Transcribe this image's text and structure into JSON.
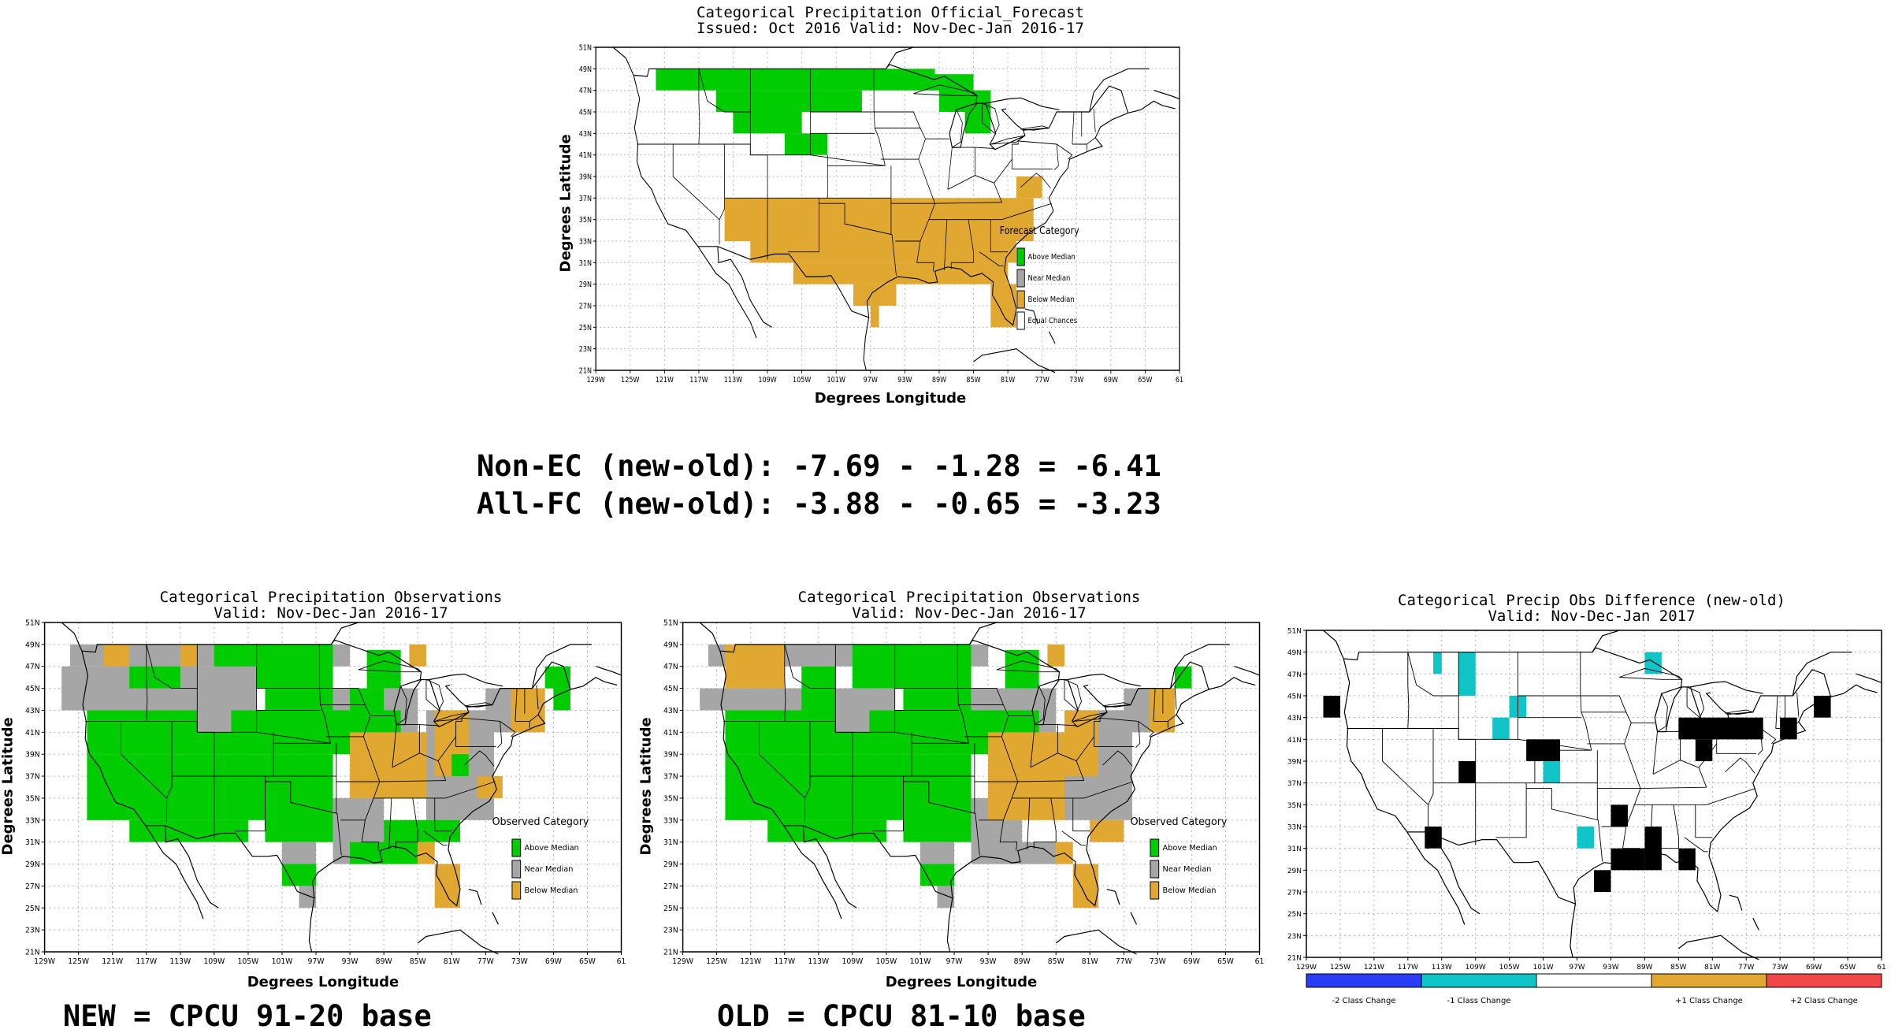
{
  "colors": {
    "above": "#00cc00",
    "near": "#a6a6a6",
    "below": "#e0a830",
    "minus2": "#2a3cf5",
    "minus1": "#10c4c8",
    "plus2": "#f04848",
    "grid": "#b0b0b0",
    "outline": "#000000"
  },
  "lat_ticks": [
    "21N",
    "23N",
    "25N",
    "27N",
    "29N",
    "31N",
    "33N",
    "35N",
    "37N",
    "39N",
    "41N",
    "43N",
    "45N",
    "47N",
    "49N",
    "51N"
  ],
  "lon_ticks": [
    "129W",
    "125W",
    "121W",
    "117W",
    "113W",
    "109W",
    "105W",
    "101W",
    "97W",
    "93W",
    "89W",
    "85W",
    "81W",
    "77W",
    "73W",
    "69W",
    "65W",
    "61"
  ],
  "forecast": {
    "title1": "Categorical Precipitation Official_Forecast",
    "title2": "Issued: Oct 2016 Valid: Nov-Dec-Jan 2016-17",
    "ylabel": "Degrees Latitude",
    "xlabel": "Degrees Longitude",
    "legend_title": "Forecast Category",
    "legend": [
      "Above Median",
      "Near Median",
      "Below Median",
      "Equal Chances"
    ],
    "cells": [
      {
        "cat": "above",
        "lon": [
          -122,
          -89.5
        ],
        "lat": [
          47,
          49
        ]
      },
      {
        "cat": "above",
        "lon": [
          -115,
          -98
        ],
        "lat": [
          45,
          47
        ]
      },
      {
        "cat": "above",
        "lon": [
          -113,
          -105
        ],
        "lat": [
          43,
          45
        ]
      },
      {
        "cat": "above",
        "lon": [
          -107,
          -102
        ],
        "lat": [
          41,
          43
        ]
      },
      {
        "cat": "above",
        "lon": [
          -92,
          -85
        ],
        "lat": [
          47,
          48.5
        ]
      },
      {
        "cat": "above",
        "lon": [
          -89,
          -83
        ],
        "lat": [
          45,
          47
        ]
      },
      {
        "cat": "above",
        "lon": [
          -86,
          -83
        ],
        "lat": [
          43,
          45
        ]
      },
      {
        "cat": "below",
        "lon": [
          -114,
          -78
        ],
        "lat": [
          33,
          37
        ]
      },
      {
        "cat": "below",
        "lon": [
          -80,
          -77
        ],
        "lat": [
          37,
          39
        ]
      },
      {
        "cat": "below",
        "lon": [
          -111,
          -80
        ],
        "lat": [
          31,
          33
        ]
      },
      {
        "cat": "below",
        "lon": [
          -106,
          -81
        ],
        "lat": [
          29,
          31
        ]
      },
      {
        "cat": "below",
        "lon": [
          -99,
          -94
        ],
        "lat": [
          27,
          29
        ]
      },
      {
        "cat": "below",
        "lon": [
          -97,
          -96
        ],
        "lat": [
          25,
          27
        ]
      },
      {
        "cat": "below",
        "lon": [
          -83,
          -80
        ],
        "lat": [
          25,
          29
        ]
      }
    ]
  },
  "stats": {
    "line1": "Non-EC (new-old): -7.69 - -1.28 = -6.41",
    "line2": "All-FC (new-old): -3.88 - -0.65 = -3.23"
  },
  "obs_new": {
    "title1": "Categorical Precipitation Observations",
    "title2": "Valid: Nov-Dec-Jan 2016-17",
    "ylabel": "Degrees Latitude",
    "xlabel": "Degrees Longitude",
    "legend_title": "Observed Category",
    "legend": [
      "Above Median",
      "Near Median",
      "Below Median"
    ],
    "caption": "NEW = CPCU 91-20 base",
    "cells": [
      {
        "cat": "near",
        "lon": [
          -126,
          -93
        ],
        "lat": [
          47,
          49
        ]
      },
      {
        "cat": "below",
        "lon": [
          -122,
          -119
        ],
        "lat": [
          47,
          49
        ]
      },
      {
        "cat": "below",
        "lon": [
          -113,
          -111
        ],
        "lat": [
          47,
          49
        ]
      },
      {
        "cat": "above",
        "lon": [
          -109,
          -95
        ],
        "lat": [
          45,
          49
        ]
      },
      {
        "cat": "above",
        "lon": [
          -91,
          -87
        ],
        "lat": [
          45,
          48.5
        ]
      },
      {
        "cat": "below",
        "lon": [
          -86,
          -84
        ],
        "lat": [
          47,
          49
        ]
      },
      {
        "cat": "near",
        "lon": [
          -127,
          -104
        ],
        "lat": [
          43,
          47
        ]
      },
      {
        "cat": "above",
        "lon": [
          -119,
          -113
        ],
        "lat": [
          45,
          47
        ]
      },
      {
        "cat": "above",
        "lon": [
          -103,
          -95
        ],
        "lat": [
          43,
          45
        ]
      },
      {
        "cat": "near",
        "lon": [
          -95,
          -85
        ],
        "lat": [
          41,
          45
        ]
      },
      {
        "cat": "above",
        "lon": [
          -93,
          -89
        ],
        "lat": [
          43,
          45
        ]
      },
      {
        "cat": "above",
        "lon": [
          -124,
          -87
        ],
        "lat": [
          39,
          43
        ]
      },
      {
        "cat": "near",
        "lon": [
          -111,
          -107
        ],
        "lat": [
          41,
          43
        ]
      },
      {
        "cat": "above",
        "lon": [
          -124,
          -103
        ],
        "lat": [
          33,
          39
        ]
      },
      {
        "cat": "above",
        "lon": [
          -119,
          -105
        ],
        "lat": [
          31,
          33
        ]
      },
      {
        "cat": "above",
        "lon": [
          -103,
          -95
        ],
        "lat": [
          31,
          39
        ]
      },
      {
        "cat": "near",
        "lon": [
          -95,
          -89
        ],
        "lat": [
          29,
          35
        ]
      },
      {
        "cat": "near",
        "lon": [
          -101,
          -97
        ],
        "lat": [
          29,
          31
        ]
      },
      {
        "cat": "above",
        "lon": [
          -101,
          -97
        ],
        "lat": [
          27,
          29
        ]
      },
      {
        "cat": "near",
        "lon": [
          -99,
          -97
        ],
        "lat": [
          25,
          27
        ]
      },
      {
        "cat": "below",
        "lon": [
          -93,
          -84
        ],
        "lat": [
          35,
          41
        ]
      },
      {
        "cat": "near",
        "lon": [
          -84,
          -76
        ],
        "lat": [
          33,
          43
        ]
      },
      {
        "cat": "below",
        "lon": [
          -83,
          -79
        ],
        "lat": [
          37,
          43
        ]
      },
      {
        "cat": "below",
        "lon": [
          -78,
          -75
        ],
        "lat": [
          35,
          37
        ]
      },
      {
        "cat": "above",
        "lon": [
          -81,
          -79
        ],
        "lat": [
          37,
          39
        ]
      },
      {
        "cat": "above",
        "lon": [
          -89,
          -80
        ],
        "lat": [
          31,
          33
        ]
      },
      {
        "cat": "above",
        "lon": [
          -93,
          -85
        ],
        "lat": [
          29,
          31
        ]
      },
      {
        "cat": "below",
        "lon": [
          -85,
          -83
        ],
        "lat": [
          29,
          31
        ]
      },
      {
        "cat": "below",
        "lon": [
          -83,
          -80
        ],
        "lat": [
          25,
          29
        ]
      },
      {
        "cat": "near",
        "lon": [
          -77,
          -71
        ],
        "lat": [
          41,
          45
        ]
      },
      {
        "cat": "below",
        "lon": [
          -74,
          -70
        ],
        "lat": [
          41,
          45
        ]
      },
      {
        "cat": "above",
        "lon": [
          -70,
          -67
        ],
        "lat": [
          45,
          47
        ]
      },
      {
        "cat": "above",
        "lon": [
          -69,
          -67
        ],
        "lat": [
          43,
          45
        ]
      }
    ]
  },
  "obs_old": {
    "title1": "Categorical Precipitation Observations",
    "title2": "Valid: Nov-Dec-Jan 2016-17",
    "ylabel": "Degrees Latitude",
    "xlabel": "Degrees Longitude",
    "legend_title": "Observed Category",
    "legend": [
      "Above Median",
      "Near Median",
      "Below Median"
    ],
    "caption": "OLD = CPCU 81-10 base",
    "cells": [
      {
        "cat": "near",
        "lon": [
          -126,
          -93
        ],
        "lat": [
          47,
          49
        ]
      },
      {
        "cat": "below",
        "lon": [
          -124,
          -117
        ],
        "lat": [
          45,
          49
        ]
      },
      {
        "cat": "above",
        "lon": [
          -109,
          -95
        ],
        "lat": [
          45,
          49
        ]
      },
      {
        "cat": "above",
        "lon": [
          -91,
          -87
        ],
        "lat": [
          45,
          48.5
        ]
      },
      {
        "cat": "below",
        "lon": [
          -86,
          -84
        ],
        "lat": [
          47,
          49
        ]
      },
      {
        "cat": "near",
        "lon": [
          -127,
          -104
        ],
        "lat": [
          43,
          45
        ]
      },
      {
        "cat": "above",
        "lon": [
          -115,
          -111
        ],
        "lat": [
          43,
          47
        ]
      },
      {
        "cat": "above",
        "lon": [
          -103,
          -95
        ],
        "lat": [
          43,
          45
        ]
      },
      {
        "cat": "near",
        "lon": [
          -95,
          -85
        ],
        "lat": [
          41,
          45
        ]
      },
      {
        "cat": "above",
        "lon": [
          -124,
          -87
        ],
        "lat": [
          39,
          43
        ]
      },
      {
        "cat": "near",
        "lon": [
          -111,
          -107
        ],
        "lat": [
          41,
          43
        ]
      },
      {
        "cat": "above",
        "lon": [
          -124,
          -103
        ],
        "lat": [
          33,
          39
        ]
      },
      {
        "cat": "above",
        "lon": [
          -119,
          -105
        ],
        "lat": [
          31,
          33
        ]
      },
      {
        "cat": "above",
        "lon": [
          -103,
          -95
        ],
        "lat": [
          31,
          39
        ]
      },
      {
        "cat": "near",
        "lon": [
          -95,
          -89
        ],
        "lat": [
          29,
          35
        ]
      },
      {
        "cat": "near",
        "lon": [
          -101,
          -97
        ],
        "lat": [
          29,
          31
        ]
      },
      {
        "cat": "above",
        "lon": [
          -101,
          -97
        ],
        "lat": [
          27,
          29
        ]
      },
      {
        "cat": "near",
        "lon": [
          -99,
          -97
        ],
        "lat": [
          25,
          27
        ]
      },
      {
        "cat": "below",
        "lon": [
          -93,
          -84
        ],
        "lat": [
          33,
          41
        ]
      },
      {
        "cat": "near",
        "lon": [
          -84,
          -76
        ],
        "lat": [
          33,
          43
        ]
      },
      {
        "cat": "below",
        "lon": [
          -84,
          -80
        ],
        "lat": [
          37,
          43
        ]
      },
      {
        "cat": "below",
        "lon": [
          -81,
          -77
        ],
        "lat": [
          31,
          33
        ]
      },
      {
        "cat": "near",
        "lon": [
          -93,
          -85
        ],
        "lat": [
          29,
          31
        ]
      },
      {
        "cat": "below",
        "lon": [
          -85,
          -83
        ],
        "lat": [
          29,
          31
        ]
      },
      {
        "cat": "below",
        "lon": [
          -83,
          -80
        ],
        "lat": [
          25,
          29
        ]
      },
      {
        "cat": "near",
        "lon": [
          -77,
          -71
        ],
        "lat": [
          41,
          45
        ]
      },
      {
        "cat": "below",
        "lon": [
          -74,
          -71
        ],
        "lat": [
          41,
          45
        ]
      },
      {
        "cat": "above",
        "lon": [
          -71,
          -69
        ],
        "lat": [
          45,
          47
        ]
      }
    ]
  },
  "diff": {
    "title1": "Categorical Precip Obs Difference (new-old)",
    "title2": "Valid: Nov-Dec-Jan 2017",
    "bar_labels": [
      "-2 Class Change",
      "-1 Class Change",
      "+1 Class Change",
      "+2 Class Change"
    ],
    "cells": [
      {
        "cat": "minus1",
        "lon": [
          -111,
          -109
        ],
        "lat": [
          45,
          49
        ]
      },
      {
        "cat": "minus1",
        "lon": [
          -114,
          -113
        ],
        "lat": [
          47,
          49
        ]
      },
      {
        "cat": "minus1",
        "lon": [
          -105,
          -103
        ],
        "lat": [
          43,
          45
        ]
      },
      {
        "cat": "minus1",
        "lon": [
          -107,
          -105
        ],
        "lat": [
          41,
          43
        ]
      },
      {
        "cat": "minus1",
        "lon": [
          -101,
          -99
        ],
        "lat": [
          37,
          39
        ]
      },
      {
        "cat": "minus1",
        "lon": [
          -89,
          -87
        ],
        "lat": [
          47,
          49
        ]
      },
      {
        "cat": "minus1",
        "lon": [
          -97,
          -95
        ],
        "lat": [
          31,
          33
        ]
      },
      {
        "cat": "minus1",
        "lon": [
          -79,
          -77
        ],
        "lat": [
          41,
          43
        ]
      },
      {
        "cat": "plus1",
        "lon": [
          -127,
          -125
        ],
        "lat": [
          43,
          45
        ]
      },
      {
        "cat": "plus1",
        "lon": [
          -103,
          -99
        ],
        "lat": [
          39,
          41
        ]
      },
      {
        "cat": "plus1",
        "lon": [
          -111,
          -109
        ],
        "lat": [
          37,
          39
        ]
      },
      {
        "cat": "plus1",
        "lon": [
          -115,
          -113
        ],
        "lat": [
          31,
          33
        ]
      },
      {
        "cat": "plus1",
        "lon": [
          -93,
          -91
        ],
        "lat": [
          33,
          35
        ]
      },
      {
        "cat": "plus1",
        "lon": [
          -93,
          -89
        ],
        "lat": [
          29,
          31
        ]
      },
      {
        "cat": "plus1",
        "lon": [
          -95,
          -93
        ],
        "lat": [
          27,
          29
        ]
      },
      {
        "cat": "plus1",
        "lon": [
          -89,
          -87
        ],
        "lat": [
          29,
          33
        ]
      },
      {
        "cat": "plus1",
        "lon": [
          -85,
          -83
        ],
        "lat": [
          29,
          31
        ]
      },
      {
        "cat": "plus1",
        "lon": [
          -85,
          -75
        ],
        "lat": [
          41,
          43
        ]
      },
      {
        "cat": "plus1",
        "lon": [
          -83,
          -81
        ],
        "lat": [
          39,
          41
        ]
      },
      {
        "cat": "plus1",
        "lon": [
          -73,
          -71
        ],
        "lat": [
          41,
          43
        ]
      },
      {
        "cat": "plus1",
        "lon": [
          -69,
          -67
        ],
        "lat": [
          43,
          45
        ]
      }
    ]
  }
}
